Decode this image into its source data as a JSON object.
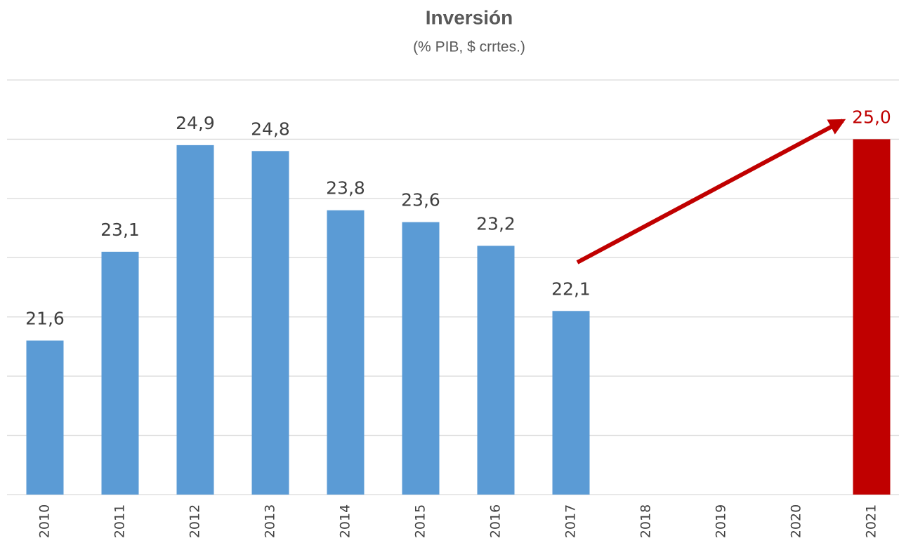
{
  "chart_data": {
    "type": "bar",
    "title": "Inversión",
    "subtitle": "(% PIB, $ crrtes.)",
    "categories": [
      "2010",
      "2011",
      "2012",
      "2013",
      "2014",
      "2015",
      "2016",
      "2017",
      "2018",
      "2019",
      "2020",
      "2021"
    ],
    "values": [
      21.6,
      23.1,
      24.9,
      24.8,
      23.8,
      23.6,
      23.2,
      22.1,
      null,
      null,
      null,
      25.0
    ],
    "value_labels": [
      "21,6",
      "23,1",
      "24,9",
      "24,8",
      "23,8",
      "23,6",
      "23,2",
      "22,1",
      null,
      null,
      null,
      "25,0"
    ],
    "colors": [
      "#5b9bd5",
      "#5b9bd5",
      "#5b9bd5",
      "#5b9bd5",
      "#5b9bd5",
      "#5b9bd5",
      "#5b9bd5",
      "#5b9bd5",
      null,
      null,
      null,
      "#c00000"
    ],
    "ylim": [
      19,
      26
    ],
    "yticks": [
      19,
      20,
      21,
      22,
      23,
      24,
      25,
      26
    ],
    "grid": true
  }
}
